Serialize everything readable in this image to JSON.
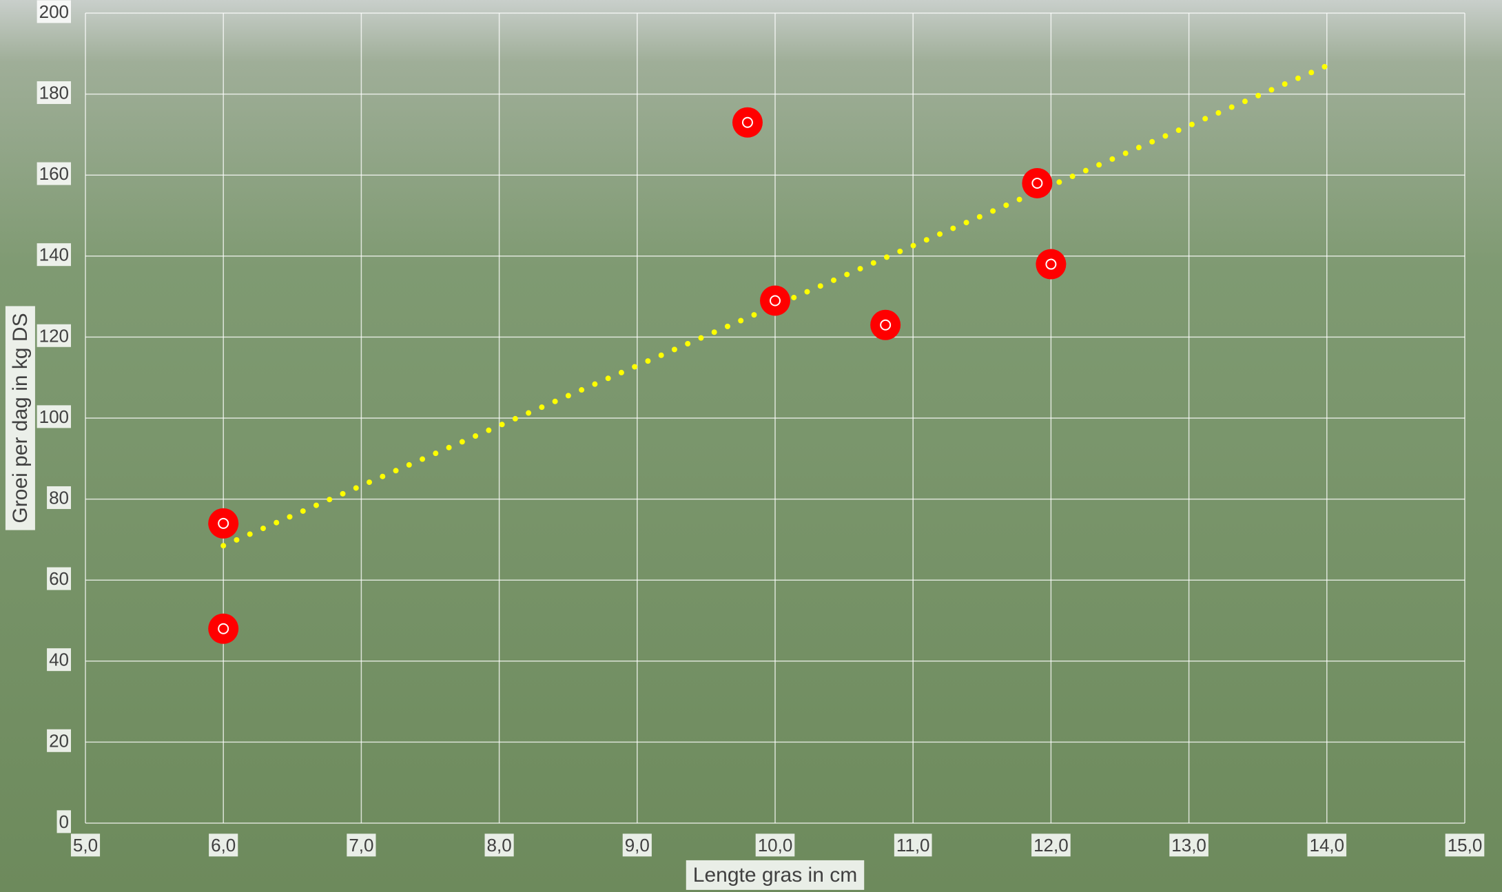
{
  "chart_data": {
    "type": "scatter",
    "x_label": "Lengte gras in cm",
    "y_label": "Groei per dag in kg DS",
    "x": [
      6.0,
      6.0,
      9.8,
      10.0,
      10.8,
      11.9,
      12.0
    ],
    "values": [
      74,
      48,
      173,
      129,
      123,
      158,
      138
    ],
    "color": "#ff0000",
    "trendline": {
      "x": [
        6,
        14
      ],
      "values": [
        68.5,
        187
      ],
      "color": "#ffff00",
      "style": "dotted"
    },
    "xlim": [
      5,
      15
    ],
    "xticks": [
      {
        "value": 5,
        "label": "5,0"
      },
      {
        "value": 6,
        "label": "6,0"
      },
      {
        "value": 7,
        "label": "7,0"
      },
      {
        "value": 8,
        "label": "8,0"
      },
      {
        "value": 9,
        "label": "9,0"
      },
      {
        "value": 10,
        "label": "10,0"
      },
      {
        "value": 11,
        "label": "11,0"
      },
      {
        "value": 12,
        "label": "12,0"
      },
      {
        "value": 13,
        "label": "13,0"
      },
      {
        "value": 14,
        "label": "14,0"
      },
      {
        "value": 15,
        "label": "15,0"
      }
    ],
    "ylim": [
      0,
      200
    ],
    "yticks": [
      0,
      20,
      40,
      60,
      80,
      100,
      120,
      140,
      160,
      180,
      200
    ],
    "grid": true
  }
}
